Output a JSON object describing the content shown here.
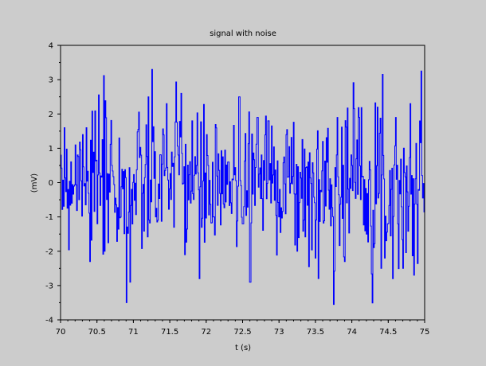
{
  "chart_data": {
    "type": "line",
    "title": "signal with noise",
    "xlabel": "t (s)",
    "ylabel": "(mV)",
    "xlim": [
      70,
      75
    ],
    "ylim": [
      -4,
      4
    ],
    "xticks": [
      "70",
      "70.5",
      "71",
      "71.5",
      "72",
      "72.5",
      "73",
      "73.5",
      "74",
      "74.5",
      "75"
    ],
    "yticks": [
      "-4",
      "-3",
      "-2",
      "-1",
      "0",
      "1",
      "2",
      "3",
      "4"
    ],
    "grid": false,
    "legend": null,
    "series": [
      {
        "name": "signal with noise",
        "color": "#0000ff",
        "n_points": 500,
        "x_start": 70,
        "x_end": 75,
        "seed": 7,
        "noise_std": 1.05,
        "wave_amp": 0.35,
        "wave_period_s": 1.25,
        "envelope_notes": "dense noisy signal roughly within [-3.6, 3.3]; max ≈3.25 near t=74.95, min ≈-3.55 near t=73.75, other extremes ≈-3.5 at t=70.9, 2.6 at t=71.65, 2.5 at t=72.5",
        "anchor_points": [
          [
            70.0,
            0.8
          ],
          [
            70.05,
            1.6
          ],
          [
            70.1,
            -0.2
          ],
          [
            70.15,
            -0.6
          ],
          [
            70.2,
            1.1
          ],
          [
            70.3,
            1.4
          ],
          [
            70.35,
            1.6
          ],
          [
            70.4,
            -2.3
          ],
          [
            70.5,
            -1.2
          ],
          [
            70.6,
            -2.0
          ],
          [
            70.7,
            0.5
          ],
          [
            70.8,
            1.3
          ],
          [
            70.9,
            -3.5
          ],
          [
            70.95,
            -2.9
          ],
          [
            71.1,
            0.8
          ],
          [
            71.2,
            2.5
          ],
          [
            71.3,
            -1.0
          ],
          [
            71.45,
            2.3
          ],
          [
            71.55,
            -1.3
          ],
          [
            71.65,
            2.6
          ],
          [
            71.7,
            -2.1
          ],
          [
            71.8,
            1.8
          ],
          [
            71.9,
            -2.8
          ],
          [
            72.0,
            1.4
          ],
          [
            72.1,
            -1.0
          ],
          [
            72.3,
            0.6
          ],
          [
            72.45,
            2.5
          ],
          [
            72.5,
            -1.2
          ],
          [
            72.6,
            -2.9
          ],
          [
            72.7,
            1.9
          ],
          [
            72.85,
            1.8
          ],
          [
            73.0,
            -1.0
          ],
          [
            73.1,
            1.4
          ],
          [
            73.25,
            -2.0
          ],
          [
            73.4,
            0.6
          ],
          [
            73.5,
            -2.2
          ],
          [
            73.6,
            1.2
          ],
          [
            73.75,
            -3.55
          ],
          [
            73.8,
            1.9
          ],
          [
            73.9,
            -2.3
          ],
          [
            74.0,
            0.5
          ],
          [
            74.1,
            1.9
          ],
          [
            74.2,
            -1.5
          ],
          [
            74.35,
            2.2
          ],
          [
            74.45,
            -2.2
          ],
          [
            74.6,
            1.9
          ],
          [
            74.7,
            -2.5
          ],
          [
            74.8,
            2.3
          ],
          [
            74.85,
            -2.7
          ],
          [
            74.95,
            3.25
          ],
          [
            75.0,
            -0.6
          ]
        ]
      }
    ]
  }
}
